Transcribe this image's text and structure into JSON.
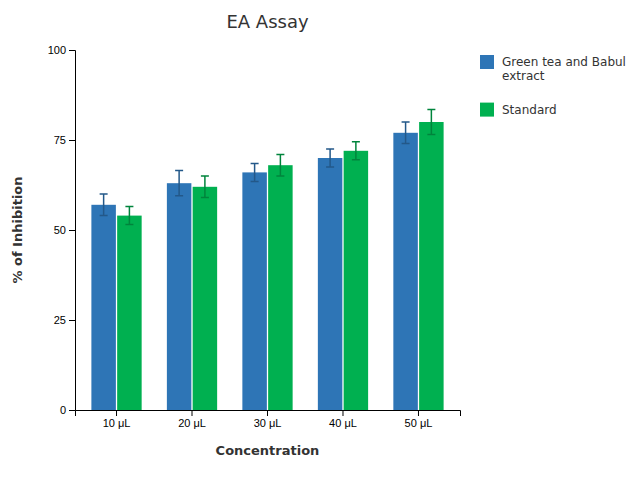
{
  "chart_data": {
    "type": "bar",
    "title": "EA Assay",
    "xlabel": "Concentration",
    "ylabel": "% of Inhibition",
    "categories": [
      "10 μL",
      "20 μL",
      "30 μL",
      "40 μL",
      "50 μL"
    ],
    "series": [
      {
        "name": "Green tea and Babul\nextract",
        "color": "#2E75B6",
        "values": [
          57,
          63,
          66,
          70,
          77
        ],
        "errors": [
          3,
          3.5,
          2.5,
          2.5,
          3
        ]
      },
      {
        "name": "Standard",
        "color": "#00B050",
        "values": [
          54,
          62,
          68,
          72,
          80
        ],
        "errors": [
          2.5,
          3,
          3,
          2.5,
          3.5
        ]
      }
    ],
    "ylim": [
      0,
      100
    ],
    "yticks": [
      0,
      25,
      50,
      75,
      100
    ],
    "grid": false,
    "legend": "right"
  }
}
